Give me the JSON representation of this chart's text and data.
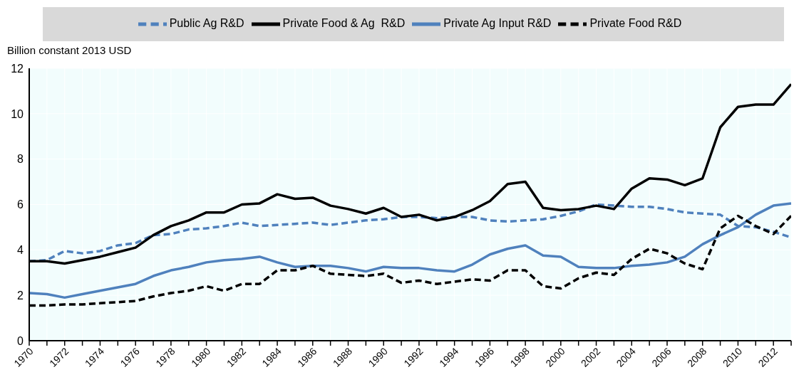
{
  "chart_data": {
    "type": "line",
    "ylabel": "Billion constant 2013 USD",
    "x": [
      1970,
      1971,
      1972,
      1973,
      1974,
      1975,
      1976,
      1977,
      1978,
      1979,
      1980,
      1981,
      1982,
      1983,
      1984,
      1985,
      1986,
      1987,
      1988,
      1989,
      1990,
      1991,
      1992,
      1993,
      1994,
      1995,
      1996,
      1997,
      1998,
      1999,
      2000,
      2001,
      2002,
      2003,
      2004,
      2005,
      2006,
      2007,
      2008,
      2009,
      2010,
      2011,
      2012,
      2013
    ],
    "series": [
      {
        "name": "Public Ag R&D",
        "color": "#4f81bd",
        "line_style": "dashed",
        "values": [
          3.5,
          3.55,
          3.95,
          3.85,
          3.95,
          4.2,
          4.3,
          4.65,
          4.7,
          4.9,
          4.95,
          5.05,
          5.2,
          5.05,
          5.1,
          5.15,
          5.2,
          5.1,
          5.2,
          5.3,
          5.35,
          5.45,
          5.45,
          5.4,
          5.45,
          5.45,
          5.3,
          5.25,
          5.3,
          5.35,
          5.5,
          5.7,
          6.0,
          5.95,
          5.9,
          5.9,
          5.8,
          5.65,
          5.6,
          5.55,
          5.05,
          5.0,
          4.8,
          4.55
        ]
      },
      {
        "name": "Private Food & Ag  R&D",
        "color": "#000000",
        "line_style": "solid",
        "values": [
          3.5,
          3.5,
          3.4,
          3.55,
          3.7,
          3.9,
          4.1,
          4.65,
          5.05,
          5.3,
          5.65,
          5.65,
          6.0,
          6.05,
          6.45,
          6.25,
          6.3,
          5.95,
          5.8,
          5.6,
          5.85,
          5.45,
          5.55,
          5.3,
          5.45,
          5.75,
          6.15,
          6.9,
          7.0,
          5.85,
          5.75,
          5.8,
          5.95,
          5.8,
          6.7,
          7.15,
          7.1,
          6.85,
          7.15,
          9.4,
          10.3,
          10.4,
          10.4,
          11.3
        ]
      },
      {
        "name": "Private Ag Input R&D",
        "color": "#4f81bd",
        "line_style": "solid",
        "values": [
          2.1,
          2.05,
          1.9,
          2.05,
          2.2,
          2.35,
          2.5,
          2.85,
          3.1,
          3.25,
          3.45,
          3.55,
          3.6,
          3.7,
          3.45,
          3.25,
          3.3,
          3.3,
          3.2,
          3.05,
          3.25,
          3.2,
          3.2,
          3.1,
          3.05,
          3.35,
          3.8,
          4.05,
          4.2,
          3.75,
          3.7,
          3.25,
          3.2,
          3.2,
          3.3,
          3.35,
          3.45,
          3.7,
          4.25,
          4.65,
          5.0,
          5.55,
          5.95,
          6.05
        ]
      },
      {
        "name": "Private Food R&D",
        "color": "#000000",
        "line_style": "dashed",
        "values": [
          1.55,
          1.55,
          1.6,
          1.6,
          1.65,
          1.7,
          1.75,
          1.95,
          2.1,
          2.2,
          2.4,
          2.2,
          2.5,
          2.5,
          3.1,
          3.1,
          3.3,
          2.95,
          2.9,
          2.85,
          2.95,
          2.55,
          2.65,
          2.5,
          2.6,
          2.7,
          2.65,
          3.1,
          3.1,
          2.4,
          2.3,
          2.75,
          3.0,
          2.9,
          3.6,
          4.05,
          3.85,
          3.4,
          3.15,
          4.95,
          5.5,
          5.05,
          4.7,
          5.5
        ]
      }
    ],
    "xlim": [
      1970,
      2013
    ],
    "xticks": [
      1970,
      {
        "value": 1971,
        "label": null
      },
      1972,
      {
        "value": 1973,
        "label": null
      },
      1974,
      {
        "value": 1975,
        "label": null
      },
      1976,
      {
        "value": 1977,
        "label": null
      },
      1978,
      {
        "value": 1979,
        "label": null
      },
      1980,
      {
        "value": 1981,
        "label": null
      },
      1982,
      {
        "value": 1983,
        "label": null
      },
      1984,
      {
        "value": 1985,
        "label": null
      },
      1986,
      {
        "value": 1987,
        "label": null
      },
      1988,
      {
        "value": 1989,
        "label": null
      },
      1990,
      {
        "value": 1991,
        "label": null
      },
      1992,
      {
        "value": 1993,
        "label": null
      },
      1994,
      {
        "value": 1995,
        "label": null
      },
      1996,
      {
        "value": 1997,
        "label": null
      },
      1998,
      {
        "value": 1999,
        "label": null
      },
      2000,
      {
        "value": 2001,
        "label": null
      },
      2002,
      {
        "value": 2003,
        "label": null
      },
      2004,
      {
        "value": 2005,
        "label": null
      },
      2006,
      {
        "value": 2007,
        "label": null
      },
      2008,
      {
        "value": 2009,
        "label": null
      },
      2010,
      {
        "value": 2011,
        "label": null
      },
      2012,
      {
        "value": 2013,
        "label": null
      }
    ],
    "ylim": [
      0,
      12
    ],
    "yticks": [
      0,
      2,
      4,
      6,
      8,
      10,
      12
    ],
    "grid": true,
    "legend": "top",
    "marker": "none"
  }
}
